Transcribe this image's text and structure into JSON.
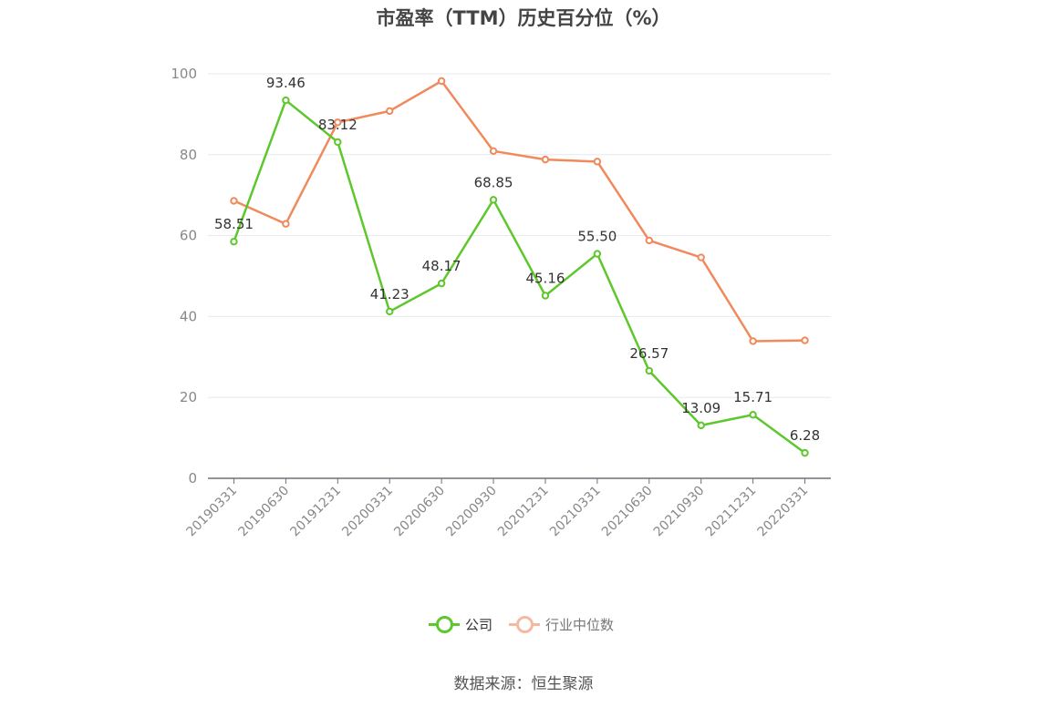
{
  "title": "市盈率（TTM）历史百分位（%）",
  "source": "数据来源：恒生聚源",
  "chart_data": {
    "type": "line",
    "title": "市盈率（TTM）历史百分位（%）",
    "categories": [
      "20190331",
      "20190630",
      "20191231",
      "20200331",
      "20200630",
      "20200930",
      "20201231",
      "20210331",
      "20210630",
      "20210930",
      "20211231",
      "20220331"
    ],
    "ylim": [
      0,
      100
    ],
    "yticks": [
      0,
      20,
      40,
      60,
      80,
      100
    ],
    "grid": true,
    "legend_position": "bottom",
    "series": [
      {
        "name": "公司",
        "color": "#5ec72c",
        "show_labels": true,
        "values": [
          58.51,
          93.46,
          83.12,
          41.23,
          48.17,
          68.85,
          45.16,
          55.5,
          26.57,
          13.09,
          15.71,
          6.28
        ],
        "labels": [
          "58.51",
          "93.46",
          "83.12",
          "41.23",
          "48.17",
          "68.85",
          "45.16",
          "55.50",
          "26.57",
          "13.09",
          "15.71",
          "6.28"
        ]
      },
      {
        "name": "行业中位数",
        "color": "#f08a5c",
        "show_labels": false,
        "values": [
          68.6,
          62.9,
          88.0,
          90.8,
          98.2,
          80.9,
          78.8,
          78.3,
          58.8,
          54.6,
          33.9,
          34.1
        ]
      }
    ]
  },
  "legend": [
    {
      "name": "公司",
      "color": "#5ec72c"
    },
    {
      "name": "行业中位数",
      "color": "#f5b8a0"
    }
  ]
}
